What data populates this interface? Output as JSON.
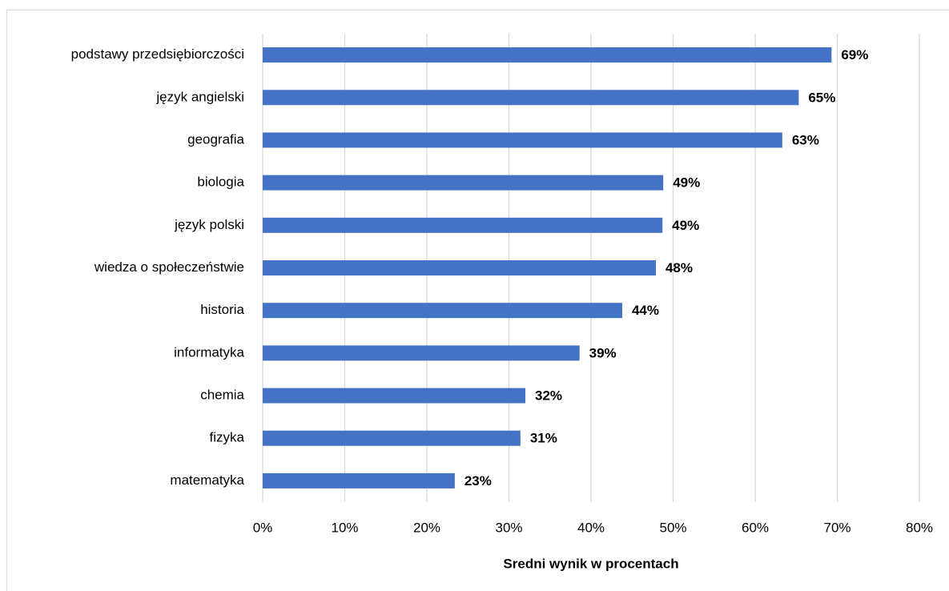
{
  "chart_data": {
    "type": "barh",
    "x_label": "Sredni wynik w procentach",
    "categories": [
      "podstawy przedsiębiorczości",
      "język angielski",
      "geografia",
      "biologia",
      "język polski",
      "wiedza o społeczeństwie",
      "historia",
      "informatyka",
      "chemia",
      "fizyka",
      "matematyka"
    ],
    "values": [
      69.3,
      65.3,
      63.3,
      48.8,
      48.7,
      47.9,
      43.8,
      38.6,
      32.0,
      31.4,
      23.4
    ],
    "value_labels": [
      "69%",
      "65%",
      "63%",
      "49%",
      "49%",
      "48%",
      "44%",
      "39%",
      "32%",
      "31%",
      "23%"
    ],
    "color": "#4472c4",
    "xlim": [
      0,
      80
    ],
    "xticks": [
      {
        "value": 0,
        "label": "0%"
      },
      {
        "value": 10,
        "label": "10%"
      },
      {
        "value": 20,
        "label": "20%"
      },
      {
        "value": 30,
        "label": "30%"
      },
      {
        "value": 40,
        "label": "40%"
      },
      {
        "value": 50,
        "label": "50%"
      },
      {
        "value": 60,
        "label": "60%"
      },
      {
        "value": 70,
        "label": "70%"
      },
      {
        "value": 80,
        "label": "80%"
      }
    ],
    "grid": true
  }
}
